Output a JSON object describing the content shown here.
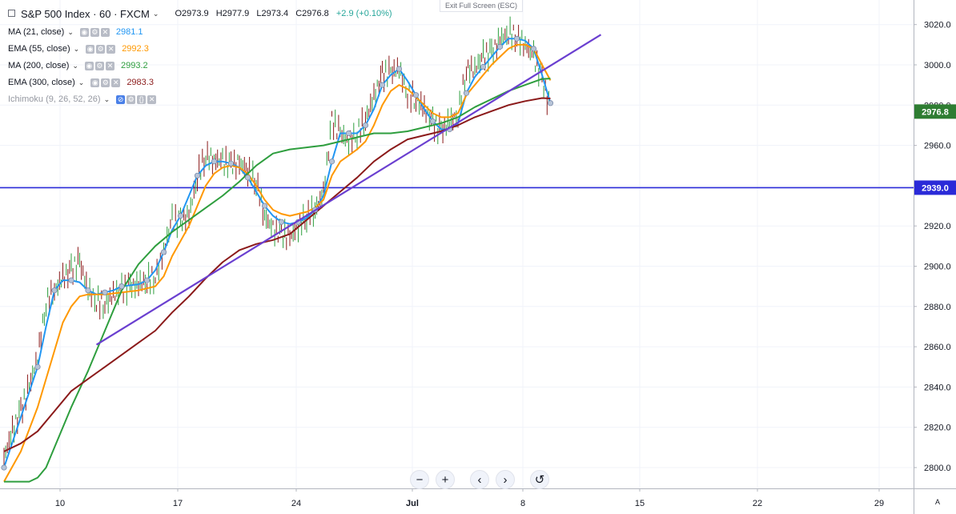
{
  "header": {
    "symbol_title": "S&P 500 Index · 60 · FXCM",
    "ohlc": {
      "open": "O2973.9",
      "high": "H2977.9",
      "low": "L2973.4",
      "close": "C2976.8",
      "change": "+2.9 (+0.10%)"
    },
    "exit_fullscreen": "Exit Full Screen (ESC)"
  },
  "indicators": [
    {
      "name": "MA (21, close)",
      "value": "2981.1",
      "color": "#2196f3"
    },
    {
      "name": "EMA (55, close)",
      "value": "2992.3",
      "color": "#ff9800"
    },
    {
      "name": "MA (200, close)",
      "value": "2993.2",
      "color": "#2e9e3e"
    },
    {
      "name": "EMA (300, close)",
      "value": "2983.3",
      "color": "#8b1a1a"
    },
    {
      "name": "Ichimoku (9, 26, 52, 26)",
      "value": "",
      "color": "#9598a1"
    }
  ],
  "controls": {
    "zoom_out": "−",
    "zoom_in": "+",
    "scroll_left": "‹",
    "scroll_right": "›",
    "reset": "↺",
    "auto_scale": "A"
  },
  "chart_data": {
    "type": "line",
    "title": "S&P 500 Index · 60 · FXCM",
    "x_tick_labels": [
      "10",
      "17",
      "24",
      "Jul",
      "8",
      "15",
      "22",
      "29"
    ],
    "y_tick_labels": [
      "3020.0",
      "3000.0",
      "2980.0",
      "2960.0",
      "2940.0",
      "2920.0",
      "2900.0",
      "2880.0",
      "2860.0",
      "2840.0",
      "2820.0",
      "2800.0"
    ],
    "ylim": [
      2793,
      3027
    ],
    "x_units": "trading days from Jun 6",
    "xlim": [
      0,
      37
    ],
    "price_label": {
      "value": 2976.8,
      "text": "2976.8",
      "color": "#2e7d32"
    },
    "horizontal_line": {
      "value": 2939.0,
      "text": "2939.0",
      "color": "#2a2ad8"
    },
    "trendline": {
      "x1": 5.5,
      "y1": 2861,
      "x2": 35.5,
      "y2": 3015,
      "color": "#6a3fd0"
    },
    "price": [
      [
        0,
        2805
      ],
      [
        0.5,
        2818
      ],
      [
        1,
        2828
      ],
      [
        1.5,
        2840
      ],
      [
        2,
        2855
      ],
      [
        2.5,
        2882
      ],
      [
        3,
        2888
      ],
      [
        3.5,
        2894
      ],
      [
        4,
        2898
      ],
      [
        4.5,
        2902
      ],
      [
        5,
        2888
      ],
      [
        5.5,
        2883
      ],
      [
        6,
        2881
      ],
      [
        6.5,
        2886
      ],
      [
        7,
        2888
      ],
      [
        7.5,
        2890
      ],
      [
        8,
        2891
      ],
      [
        8.5,
        2893
      ],
      [
        9,
        2895
      ],
      [
        9.5,
        2907
      ],
      [
        10,
        2923
      ],
      [
        10.5,
        2922
      ],
      [
        11,
        2925
      ],
      [
        11.5,
        2945
      ],
      [
        12,
        2955
      ],
      [
        12.5,
        2953
      ],
      [
        13,
        2952
      ],
      [
        13.5,
        2950
      ],
      [
        14,
        2951
      ],
      [
        14.5,
        2948
      ],
      [
        15,
        2942
      ],
      [
        15.5,
        2925
      ],
      [
        16,
        2918
      ],
      [
        16.5,
        2916
      ],
      [
        17,
        2914
      ],
      [
        17.5,
        2920
      ],
      [
        18,
        2925
      ],
      [
        18.5,
        2928
      ],
      [
        19,
        2936
      ],
      [
        19.5,
        2972
      ],
      [
        20,
        2966
      ],
      [
        20.5,
        2962
      ],
      [
        21,
        2966
      ],
      [
        21.5,
        2973
      ],
      [
        22,
        2984
      ],
      [
        22.5,
        2995
      ],
      [
        23,
        2996
      ],
      [
        23.5,
        2998
      ],
      [
        24,
        2986
      ],
      [
        24.5,
        2983
      ],
      [
        25,
        2978
      ],
      [
        25.5,
        2971
      ],
      [
        26,
        2967
      ],
      [
        26.5,
        2972
      ],
      [
        27,
        2975
      ],
      [
        27.5,
        2998
      ],
      [
        28,
        2998
      ],
      [
        28.5,
        3004
      ],
      [
        29,
        3006
      ],
      [
        29.5,
        3012
      ],
      [
        30,
        3016
      ],
      [
        30.5,
        3014
      ],
      [
        31,
        3010
      ],
      [
        31.5,
        3004
      ],
      [
        32,
        2993
      ],
      [
        32.5,
        2976.8
      ]
    ],
    "series": [
      {
        "name": "MA (21, close)",
        "color": "#2196f3",
        "points": [
          [
            0,
            2800
          ],
          [
            1,
            2825
          ],
          [
            2,
            2850
          ],
          [
            2.5,
            2870
          ],
          [
            3,
            2888
          ],
          [
            3.5,
            2893
          ],
          [
            4,
            2893
          ],
          [
            4.5,
            2892
          ],
          [
            5,
            2888
          ],
          [
            5.5,
            2886
          ],
          [
            6,
            2887
          ],
          [
            6.5,
            2888
          ],
          [
            7,
            2890
          ],
          [
            8,
            2891
          ],
          [
            8.5,
            2893
          ],
          [
            9,
            2898
          ],
          [
            9.5,
            2907
          ],
          [
            10,
            2918
          ],
          [
            10.5,
            2925
          ],
          [
            11,
            2935
          ],
          [
            11.5,
            2945
          ],
          [
            12,
            2950
          ],
          [
            12.5,
            2952
          ],
          [
            13,
            2952
          ],
          [
            13.5,
            2951
          ],
          [
            14,
            2949
          ],
          [
            14.5,
            2944
          ],
          [
            15,
            2937
          ],
          [
            15.5,
            2930
          ],
          [
            16,
            2925
          ],
          [
            16.5,
            2922
          ],
          [
            17,
            2921
          ],
          [
            17.5,
            2922
          ],
          [
            18,
            2924
          ],
          [
            18.5,
            2928
          ],
          [
            19,
            2935
          ],
          [
            19.5,
            2952
          ],
          [
            20,
            2966
          ],
          [
            20.5,
            2966
          ],
          [
            21,
            2966
          ],
          [
            21.5,
            2970
          ],
          [
            22,
            2978
          ],
          [
            22.5,
            2990
          ],
          [
            23,
            2995
          ],
          [
            23.5,
            2998
          ],
          [
            24,
            2992
          ],
          [
            24.5,
            2985
          ],
          [
            25,
            2978
          ],
          [
            25.5,
            2972
          ],
          [
            26,
            2968
          ],
          [
            26.5,
            2968
          ],
          [
            27,
            2971
          ],
          [
            27.5,
            2986
          ],
          [
            28,
            2994
          ],
          [
            28.5,
            2999
          ],
          [
            29,
            3004
          ],
          [
            29.5,
            3009
          ],
          [
            30,
            3013
          ],
          [
            30.5,
            3013
          ],
          [
            31,
            3012
          ],
          [
            31.5,
            3008
          ],
          [
            32,
            2995
          ],
          [
            32.5,
            2981
          ]
        ]
      },
      {
        "name": "EMA (55, close)",
        "color": "#ff9800",
        "points": [
          [
            0,
            2793
          ],
          [
            1,
            2808
          ],
          [
            2,
            2830
          ],
          [
            3,
            2858
          ],
          [
            3.5,
            2872
          ],
          [
            4,
            2880
          ],
          [
            4.5,
            2885
          ],
          [
            5,
            2886
          ],
          [
            6,
            2886
          ],
          [
            7,
            2887
          ],
          [
            8,
            2888
          ],
          [
            9,
            2890
          ],
          [
            9.5,
            2895
          ],
          [
            10,
            2905
          ],
          [
            11,
            2920
          ],
          [
            11.5,
            2930
          ],
          [
            12,
            2940
          ],
          [
            12.5,
            2946
          ],
          [
            13,
            2949
          ],
          [
            13.5,
            2950
          ],
          [
            14,
            2949
          ],
          [
            14.5,
            2946
          ],
          [
            15,
            2940
          ],
          [
            15.5,
            2933
          ],
          [
            16,
            2928
          ],
          [
            16.5,
            2926
          ],
          [
            17,
            2925
          ],
          [
            17.5,
            2926
          ],
          [
            18,
            2927
          ],
          [
            18.5,
            2929
          ],
          [
            19,
            2933
          ],
          [
            19.5,
            2945
          ],
          [
            20,
            2952
          ],
          [
            20.5,
            2955
          ],
          [
            21,
            2958
          ],
          [
            21.5,
            2962
          ],
          [
            22,
            2970
          ],
          [
            22.5,
            2980
          ],
          [
            23,
            2987
          ],
          [
            23.5,
            2990
          ],
          [
            24,
            2988
          ],
          [
            24.5,
            2984
          ],
          [
            25,
            2980
          ],
          [
            25.5,
            2976
          ],
          [
            26,
            2974
          ],
          [
            26.5,
            2974
          ],
          [
            27,
            2976
          ],
          [
            27.5,
            2985
          ],
          [
            28,
            2990
          ],
          [
            28.5,
            2995
          ],
          [
            29,
            3000
          ],
          [
            29.5,
            3004
          ],
          [
            30,
            3008
          ],
          [
            30.5,
            3010
          ],
          [
            31,
            3010
          ],
          [
            31.5,
            3008
          ],
          [
            32,
            3000
          ],
          [
            32.5,
            2992.3
          ]
        ]
      },
      {
        "name": "MA (200, close)",
        "color": "#2e9e3e",
        "points": [
          [
            0,
            2793
          ],
          [
            1.5,
            2793
          ],
          [
            2,
            2795
          ],
          [
            2.5,
            2800
          ],
          [
            3,
            2810
          ],
          [
            4,
            2830
          ],
          [
            5,
            2848
          ],
          [
            6,
            2868
          ],
          [
            7,
            2888
          ],
          [
            8,
            2901
          ],
          [
            9,
            2910
          ],
          [
            10,
            2917
          ],
          [
            11,
            2923
          ],
          [
            12,
            2929
          ],
          [
            13,
            2935
          ],
          [
            14,
            2942
          ],
          [
            15,
            2950
          ],
          [
            16,
            2956
          ],
          [
            17,
            2958
          ],
          [
            18,
            2959
          ],
          [
            19,
            2960
          ],
          [
            20,
            2962
          ],
          [
            21,
            2964
          ],
          [
            22,
            2966
          ],
          [
            23,
            2966
          ],
          [
            24,
            2967
          ],
          [
            25,
            2969
          ],
          [
            26,
            2971
          ],
          [
            27,
            2974
          ],
          [
            28,
            2979
          ],
          [
            29,
            2983
          ],
          [
            30,
            2987
          ],
          [
            31,
            2990
          ],
          [
            32,
            2993
          ],
          [
            32.5,
            2993.2
          ]
        ]
      },
      {
        "name": "EMA (300, close)",
        "color": "#8b1a1a",
        "points": [
          [
            0,
            2808
          ],
          [
            1,
            2812
          ],
          [
            2,
            2818
          ],
          [
            3,
            2828
          ],
          [
            4,
            2838
          ],
          [
            5,
            2844
          ],
          [
            6,
            2850
          ],
          [
            7,
            2856
          ],
          [
            8,
            2862
          ],
          [
            9,
            2868
          ],
          [
            10,
            2877
          ],
          [
            11,
            2885
          ],
          [
            12,
            2894
          ],
          [
            13,
            2902
          ],
          [
            14,
            2908
          ],
          [
            15,
            2911
          ],
          [
            16,
            2913
          ],
          [
            17,
            2916
          ],
          [
            18,
            2923
          ],
          [
            19,
            2930
          ],
          [
            20,
            2937
          ],
          [
            21,
            2944
          ],
          [
            22,
            2952
          ],
          [
            23,
            2958
          ],
          [
            24,
            2963
          ],
          [
            25,
            2965
          ],
          [
            26,
            2967
          ],
          [
            27,
            2970
          ],
          [
            28,
            2974
          ],
          [
            29,
            2977
          ],
          [
            30,
            2980
          ],
          [
            31,
            2982
          ],
          [
            32,
            2983.5
          ],
          [
            32.5,
            2983.3
          ]
        ]
      }
    ]
  }
}
